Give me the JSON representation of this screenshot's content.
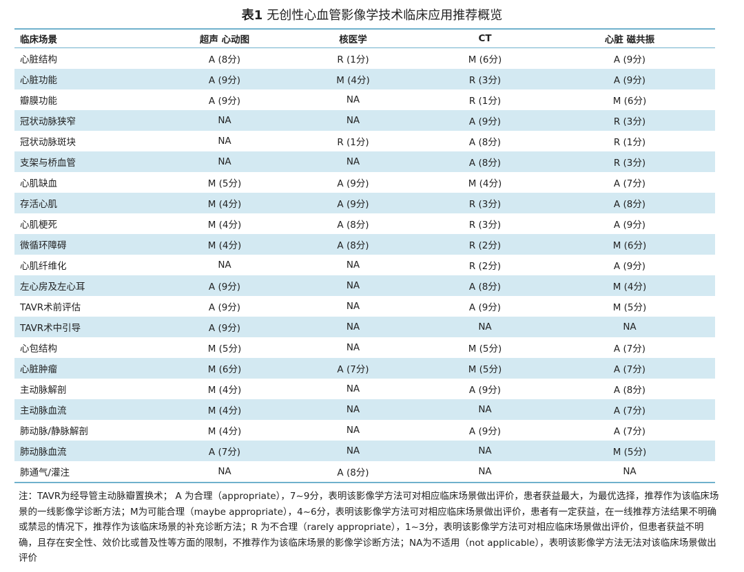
{
  "title": {
    "label": "表1",
    "text": "无创性心血管影像学技术临床应用推荐概览"
  },
  "table": {
    "headers": [
      "临床场景",
      "超声 心动图",
      "核医学",
      "CT",
      "心脏 磁共振"
    ],
    "rows": [
      [
        "心脏结构",
        "A (8分)",
        "R (1分)",
        "M (6分)",
        "A (9分)"
      ],
      [
        "心脏功能",
        "A (9分)",
        "M (4分)",
        "R (3分)",
        "A (9分)"
      ],
      [
        "瓣膜功能",
        "A (9分)",
        "NA",
        "R (1分)",
        "M (6分)"
      ],
      [
        "冠状动脉狭窄",
        "NA",
        "NA",
        "A (9分)",
        "R (3分)"
      ],
      [
        "冠状动脉斑块",
        "NA",
        "R (1分)",
        "A (8分)",
        "R (1分)"
      ],
      [
        "支架与桥血管",
        "NA",
        "NA",
        "A (8分)",
        "R (3分)"
      ],
      [
        "心肌缺血",
        "M (5分)",
        "A (9分)",
        "M (4分)",
        "A (7分)"
      ],
      [
        "存活心肌",
        "M (4分)",
        "A (9分)",
        "R (3分)",
        "A (8分)"
      ],
      [
        "心肌梗死",
        "M (4分)",
        "A (8分)",
        "R (3分)",
        "A (9分)"
      ],
      [
        "微循环障碍",
        "M (4分)",
        "A (8分)",
        "R (2分)",
        "M (6分)"
      ],
      [
        "心肌纤维化",
        "NA",
        "NA",
        "R (2分)",
        "A (9分)"
      ],
      [
        "左心房及左心耳",
        "A (9分)",
        "NA",
        "A (8分)",
        "M (4分)"
      ],
      [
        "TAVR术前评估",
        "A (9分)",
        "NA",
        "A (9分)",
        "M (5分)"
      ],
      [
        "TAVR术中引导",
        "A (9分)",
        "NA",
        "NA",
        "NA"
      ],
      [
        "心包结构",
        "M (5分)",
        "NA",
        "M (5分)",
        "A (7分)"
      ],
      [
        "心脏肿瘤",
        "M (6分)",
        "A (7分)",
        "M (5分)",
        "A (7分)"
      ],
      [
        "主动脉解剖",
        "M (4分)",
        "NA",
        "A (9分)",
        "A (8分)"
      ],
      [
        "主动脉血流",
        "M (4分)",
        "NA",
        "NA",
        "A (7分)"
      ],
      [
        "肺动脉/静脉解剖",
        "M (4分)",
        "NA",
        "A (9分)",
        "A (7分)"
      ],
      [
        "肺动脉血流",
        "A (7分)",
        "NA",
        "NA",
        "M (5分)"
      ],
      [
        "肺通气/灌注",
        "NA",
        "A (8分)",
        "NA",
        "NA"
      ]
    ]
  },
  "note": "注：TAVR为经导管主动脉瓣置换术； A 为合理（appropriate），7~9分，表明该影像学方法可对相应临床场景做出评价，患者获益最大，为最优选择，推荐作为该临床场景的一线影像学诊断方法；M为可能合理（maybe appropriate），4~6分，表明该影像学方法可对相应临床场景做出评价，患者有一定获益，在一线推荐方法结果不明确或禁忌的情况下，推荐作为该临床场景的补充诊断方法；R 为不合理（rarely appropriate），1~3分，表明该影像学方法可对相应临床场景做出评价，但患者获益不明确，且存在安全性、效价比或普及性等方面的限制，不推荐作为该临床场景的影像学诊断方法；NA为不适用（not applicable），表明该影像学方法无法对该临床场景做出评价"
}
